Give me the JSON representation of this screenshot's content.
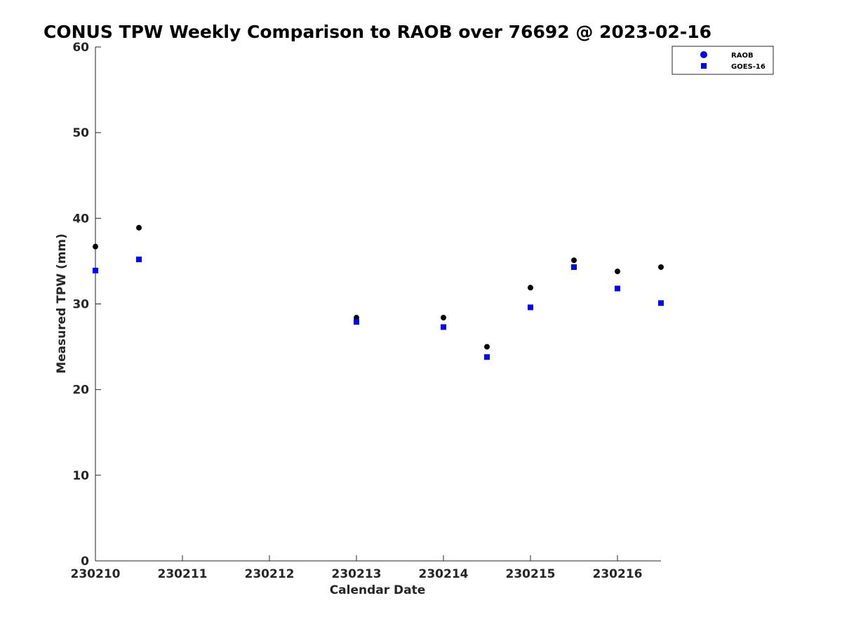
{
  "chart_data": {
    "type": "scatter",
    "title": "CONUS TPW Weekly Comparison to RAOB over 76692 @ 2023-02-16",
    "xlabel": "Calendar Date",
    "ylabel": "Measured TPW (mm)",
    "xlim": [
      0,
      6.5
    ],
    "ylim": [
      0,
      60
    ],
    "x_ticks": [
      0,
      1,
      2,
      3,
      4,
      5,
      6
    ],
    "x_tick_labels": [
      "230210",
      "230211",
      "230212",
      "230213",
      "230214",
      "230215",
      "230216"
    ],
    "y_ticks": [
      0,
      10,
      20,
      30,
      40,
      50,
      60
    ],
    "y_tick_labels": [
      "0",
      "10",
      "20",
      "30",
      "40",
      "50",
      "60"
    ],
    "grid": false,
    "legend_position": "top-right",
    "series": [
      {
        "name": "RAOB",
        "marker": "circle",
        "color": "#000000",
        "legend_color": "#0000ff",
        "x": [
          0,
          0.5,
          3,
          4,
          4.5,
          5,
          5.5,
          6,
          6.5
        ],
        "values": [
          36.7,
          38.9,
          28.4,
          28.4,
          25.0,
          31.9,
          35.1,
          33.8,
          34.3
        ]
      },
      {
        "name": "GOES-16",
        "marker": "square",
        "color": "#0000ff",
        "legend_color": "#0000ff",
        "x": [
          0,
          0.5,
          3,
          4,
          4.5,
          5,
          5.5,
          6,
          6.5
        ],
        "values": [
          33.9,
          35.2,
          27.9,
          27.3,
          23.8,
          29.6,
          34.3,
          31.8,
          30.1
        ]
      }
    ]
  }
}
